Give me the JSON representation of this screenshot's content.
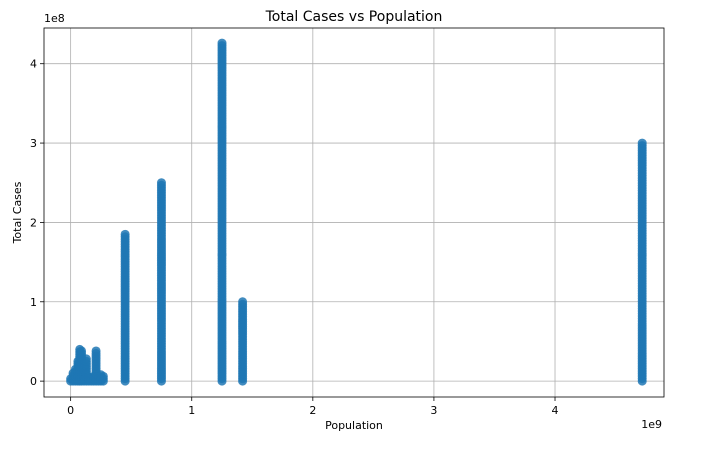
{
  "chart_data": {
    "type": "scatter",
    "title": "Total Cases vs Population",
    "xlabel": "Population",
    "ylabel": "Total Cases",
    "x_offset_label": "1e9",
    "y_offset_label": "1e8",
    "xlim": [
      -0.22,
      4.9
    ],
    "ylim": [
      -0.2,
      4.45
    ],
    "xticks": [
      0,
      1,
      2,
      3,
      4
    ],
    "yticks": [
      0,
      1,
      2,
      3,
      4
    ],
    "xtick_labels": [
      "0",
      "1",
      "2",
      "3",
      "4"
    ],
    "ytick_labels": [
      "0",
      "1",
      "2",
      "3",
      "4"
    ],
    "grid": true,
    "marker_color": "#1f77b4",
    "columns": [
      {
        "x": 0.0,
        "ymin": 0.0,
        "ymax": 0.03
      },
      {
        "x": 0.02,
        "ymin": 0.0,
        "ymax": 0.1
      },
      {
        "x": 0.04,
        "ymin": 0.0,
        "ymax": 0.15
      },
      {
        "x": 0.06,
        "ymin": 0.0,
        "ymax": 0.25
      },
      {
        "x": 0.075,
        "ymin": 0.0,
        "ymax": 0.4
      },
      {
        "x": 0.09,
        "ymin": 0.0,
        "ymax": 0.38
      },
      {
        "x": 0.11,
        "ymin": 0.0,
        "ymax": 0.18
      },
      {
        "x": 0.13,
        "ymin": 0.0,
        "ymax": 0.28
      },
      {
        "x": 0.15,
        "ymin": 0.0,
        "ymax": 0.05
      },
      {
        "x": 0.17,
        "ymin": 0.0,
        "ymax": 0.04
      },
      {
        "x": 0.19,
        "ymin": 0.0,
        "ymax": 0.06
      },
      {
        "x": 0.21,
        "ymin": 0.0,
        "ymax": 0.38
      },
      {
        "x": 0.23,
        "ymin": 0.0,
        "ymax": 0.06
      },
      {
        "x": 0.25,
        "ymin": 0.0,
        "ymax": 0.08
      },
      {
        "x": 0.27,
        "ymin": 0.0,
        "ymax": 0.06
      },
      {
        "x": 0.45,
        "ymin": 0.0,
        "ymax": 1.85
      },
      {
        "x": 0.75,
        "ymin": 0.0,
        "ymax": 2.5
      },
      {
        "x": 1.25,
        "ymin": 0.0,
        "ymax": 4.26
      },
      {
        "x": 1.42,
        "ymin": 0.0,
        "ymax": 1.0
      },
      {
        "x": 4.72,
        "ymin": 0.0,
        "ymax": 3.0
      }
    ]
  }
}
